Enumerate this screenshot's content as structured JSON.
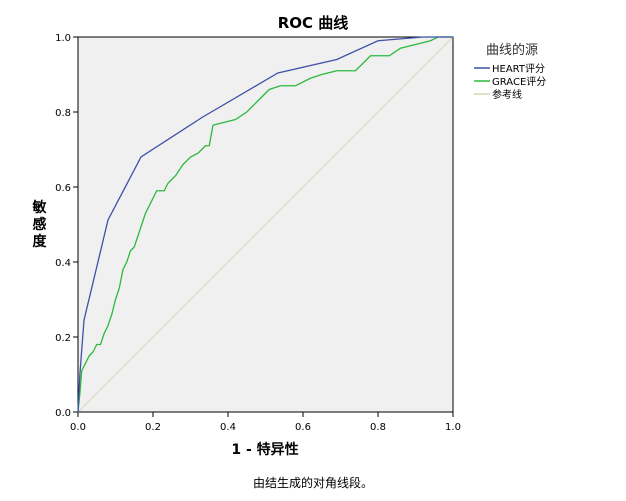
{
  "chart_data": {
    "type": "line",
    "title": "ROC 曲线",
    "xlabel": "1 - 特异性",
    "ylabel": "敏感度",
    "xlim": [
      0,
      1
    ],
    "ylim": [
      0,
      1
    ],
    "x_ticks": [
      "0.0",
      "0.2",
      "0.4",
      "0.6",
      "0.8",
      "1.0"
    ],
    "y_ticks": [
      "0.0",
      "0.2",
      "0.4",
      "0.6",
      "0.8",
      "1.0"
    ],
    "grid": false,
    "legend_title": "曲线的源",
    "legend_position": "right",
    "footnote": "由结生成的对角线段。",
    "series": [
      {
        "name": "HEART评分",
        "color": "#3f50a8",
        "points": [
          [
            0,
            0
          ],
          [
            0.005,
            0.1
          ],
          [
            0.016,
            0.245
          ],
          [
            0.08,
            0.512
          ],
          [
            0.168,
            0.68
          ],
          [
            0.33,
            0.785
          ],
          [
            0.533,
            0.904
          ],
          [
            0.69,
            0.94
          ],
          [
            0.8,
            0.99
          ],
          [
            0.92,
            1.0
          ],
          [
            1,
            1
          ]
        ]
      },
      {
        "name": "GRACE评分",
        "color": "#2cb83c",
        "points": [
          [
            0,
            0
          ],
          [
            0.005,
            0.05
          ],
          [
            0.01,
            0.11
          ],
          [
            0.02,
            0.13
          ],
          [
            0.03,
            0.15
          ],
          [
            0.04,
            0.16
          ],
          [
            0.05,
            0.18
          ],
          [
            0.06,
            0.18
          ],
          [
            0.07,
            0.21
          ],
          [
            0.08,
            0.23
          ],
          [
            0.09,
            0.26
          ],
          [
            0.1,
            0.3
          ],
          [
            0.11,
            0.33
          ],
          [
            0.12,
            0.38
          ],
          [
            0.13,
            0.4
          ],
          [
            0.14,
            0.43
          ],
          [
            0.15,
            0.44
          ],
          [
            0.16,
            0.47
          ],
          [
            0.17,
            0.5
          ],
          [
            0.18,
            0.53
          ],
          [
            0.19,
            0.55
          ],
          [
            0.21,
            0.59
          ],
          [
            0.23,
            0.59
          ],
          [
            0.24,
            0.61
          ],
          [
            0.26,
            0.63
          ],
          [
            0.28,
            0.66
          ],
          [
            0.3,
            0.68
          ],
          [
            0.32,
            0.69
          ],
          [
            0.34,
            0.71
          ],
          [
            0.35,
            0.71
          ],
          [
            0.36,
            0.765
          ],
          [
            0.38,
            0.77
          ],
          [
            0.42,
            0.78
          ],
          [
            0.45,
            0.8
          ],
          [
            0.48,
            0.83
          ],
          [
            0.51,
            0.86
          ],
          [
            0.54,
            0.87
          ],
          [
            0.58,
            0.87
          ],
          [
            0.62,
            0.89
          ],
          [
            0.65,
            0.9
          ],
          [
            0.69,
            0.91
          ],
          [
            0.74,
            0.91
          ],
          [
            0.78,
            0.95
          ],
          [
            0.83,
            0.95
          ],
          [
            0.86,
            0.97
          ],
          [
            0.9,
            0.98
          ],
          [
            0.94,
            0.99
          ],
          [
            0.96,
            1.0
          ],
          [
            1,
            1
          ]
        ]
      },
      {
        "name": "参考线",
        "color": "#d9d6b4",
        "points": [
          [
            0,
            0
          ],
          [
            1,
            1
          ]
        ]
      }
    ]
  }
}
